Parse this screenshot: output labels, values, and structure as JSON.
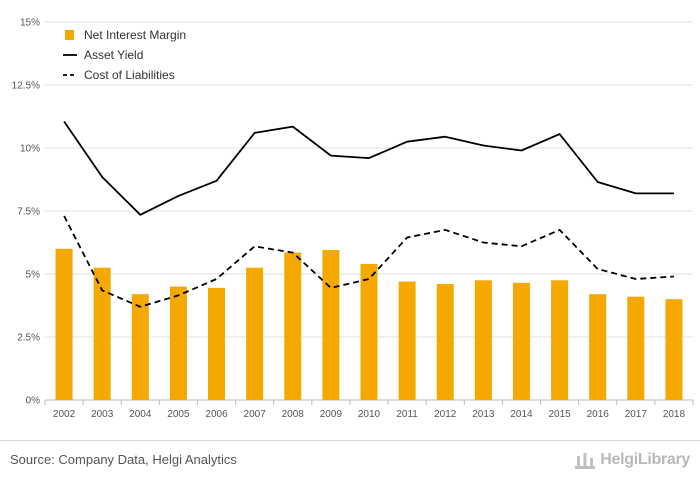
{
  "chart_data": {
    "type": "bar",
    "categories": [
      "2002",
      "2003",
      "2004",
      "2005",
      "2006",
      "2007",
      "2008",
      "2009",
      "2010",
      "2011",
      "2012",
      "2013",
      "2014",
      "2015",
      "2016",
      "2017",
      "2018"
    ],
    "y_tick_labels": [
      "0%",
      "2.5%",
      "5%",
      "7.5%",
      "10%",
      "12.5%",
      "15%"
    ],
    "ylim": [
      0,
      15
    ],
    "grid": true,
    "legend_position": "top-left",
    "series": [
      {
        "name": "Net Interest Margin",
        "type": "bar",
        "color": "#f5a800",
        "values": [
          6.0,
          5.25,
          4.2,
          4.5,
          4.45,
          5.25,
          5.85,
          5.95,
          5.4,
          4.7,
          4.6,
          4.75,
          4.65,
          4.75,
          4.2,
          4.1,
          4.0
        ]
      },
      {
        "name": "Asset Yield",
        "type": "line",
        "style": "solid",
        "color": "#000000",
        "values": [
          11.05,
          8.85,
          7.35,
          8.1,
          8.7,
          10.6,
          10.85,
          9.7,
          9.6,
          10.25,
          10.45,
          10.1,
          9.9,
          10.55,
          8.65,
          8.2,
          8.2
        ]
      },
      {
        "name": "Cost of Liabilities",
        "type": "line",
        "style": "dashed",
        "color": "#000000",
        "values": [
          7.3,
          4.35,
          3.7,
          4.15,
          4.8,
          6.1,
          5.85,
          4.45,
          4.8,
          6.45,
          6.75,
          6.25,
          6.1,
          6.75,
          5.2,
          4.8,
          4.9
        ]
      }
    ]
  },
  "footer": {
    "source": "Source: Company Data, Helgi Analytics",
    "brand": "HelgiLibrary"
  }
}
